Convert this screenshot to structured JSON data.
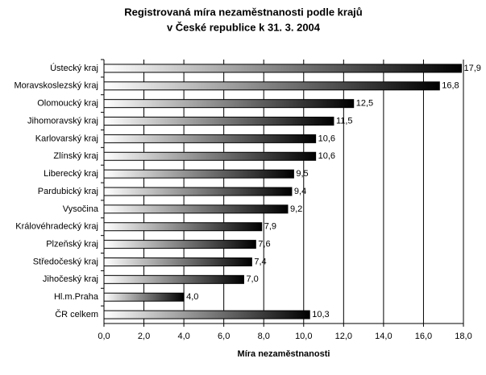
{
  "chart_data": {
    "type": "hbar",
    "title": [
      "Registrovaná míra nezaměstnanosti podle krajů",
      "v České republice k 31. 3. 2004"
    ],
    "x_label": "Míra nezaměstnanosti",
    "categories": [
      "Ústecký kraj",
      "Moravskoslezský kraj",
      "Olomoucký kraj",
      "Jihomoravský kraj",
      "Karlovarský kraj",
      "Zlínský kraj",
      "Liberecký kraj",
      "Pardubický kraj",
      "Vysočina",
      "Královéhradecký kraj",
      "Plzeňský kraj",
      "Středočeský kraj",
      "Jihočeský kraj",
      "Hl.m.Praha",
      "ČR celkem"
    ],
    "values": [
      17.9,
      16.8,
      12.5,
      11.5,
      10.6,
      10.6,
      9.5,
      9.4,
      9.2,
      7.9,
      7.6,
      7.4,
      7.0,
      4.0,
      10.3
    ],
    "value_labels": [
      "17,9",
      "16,8",
      "12,5",
      "11,5",
      "10,6",
      "10,6",
      "9,5",
      "9,4",
      "9,2",
      "7,9",
      "7,6",
      "7,4",
      "7,0",
      "4,0",
      "10,3"
    ],
    "gradient": [
      "#ffffff",
      "#000000"
    ],
    "xlim": [
      0,
      18
    ],
    "xticks": [
      {
        "value": 0,
        "label": "0,0"
      },
      {
        "value": 2,
        "label": "2,0"
      },
      {
        "value": 4,
        "label": "4,0"
      },
      {
        "value": 6,
        "label": "6,0"
      },
      {
        "value": 8,
        "label": "8,0"
      },
      {
        "value": 10,
        "label": "10,0"
      },
      {
        "value": 12,
        "label": "12,0"
      },
      {
        "value": 14,
        "label": "14,0"
      },
      {
        "value": 16,
        "label": "16,0"
      },
      {
        "value": 18,
        "label": "18,0"
      }
    ],
    "grid": true
  }
}
